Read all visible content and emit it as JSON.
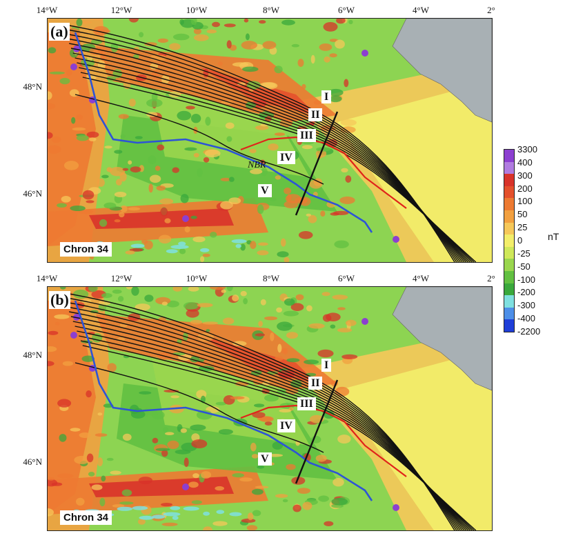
{
  "top_axis_a": [
    "14°W",
    "12°W",
    "10°W",
    "8°W",
    "6°W",
    "4°W",
    "2°"
  ],
  "top_axis_b": [
    "14°W",
    "12°W",
    "10°W",
    "8°W",
    "6°W",
    "4°W",
    "2°"
  ],
  "left_axis": [
    "48°N",
    "46°N"
  ],
  "panels": [
    {
      "label": "(a)",
      "chron": "Chron 34",
      "nbr": "NBR",
      "romans": [
        "I",
        "II",
        "III",
        "IV",
        "V"
      ]
    },
    {
      "label": "(b)",
      "chron": "Chron 34",
      "romans": [
        "I",
        "II",
        "III",
        "IV",
        "V"
      ]
    }
  ],
  "colorbar": {
    "unit": "nT",
    "labels": [
      "3300",
      "400",
      "300",
      "200",
      "100",
      "50",
      "25",
      "0",
      "-25",
      "-50",
      "-100",
      "-200",
      "-300",
      "-400",
      "-2200"
    ],
    "colors": [
      "#8c3fd0",
      "#b07ce0",
      "#d8332a",
      "#e4502c",
      "#ed7a32",
      "#f2a040",
      "#f6c85a",
      "#f3ee6a",
      "#cfe85a",
      "#9ad64e",
      "#62c041",
      "#3aa83c",
      "#7fe0e0",
      "#4d8fe8",
      "#1f3ed8"
    ]
  },
  "colors": {
    "land": "#a8b0b4",
    "ridge": "#2d54d6",
    "red_line": "#e0231b",
    "contour": "#111111"
  }
}
